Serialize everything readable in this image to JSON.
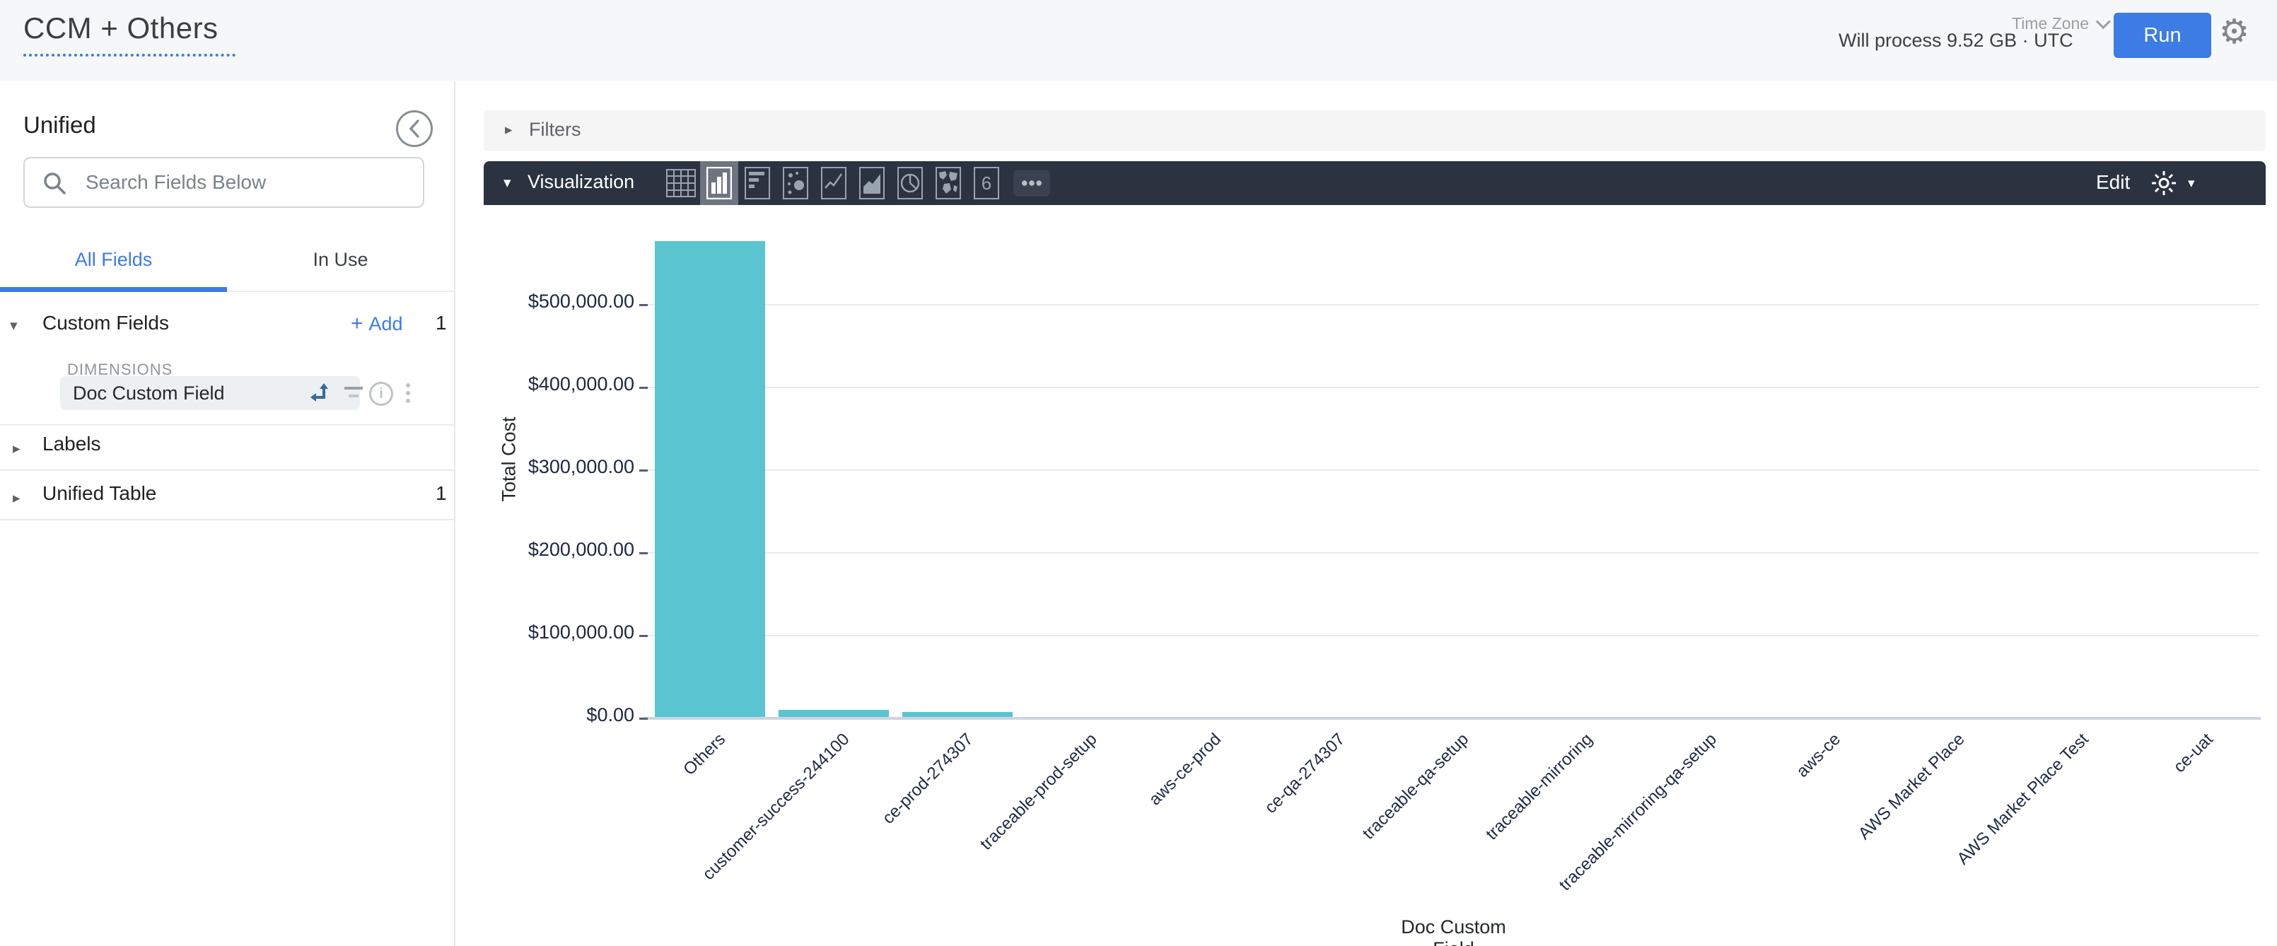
{
  "header": {
    "title": "CCM + Others",
    "process_info": "Will process 9.52 GB · UTC",
    "time_zone_label": "Time Zone",
    "run_label": "Run"
  },
  "sidebar": {
    "view_name": "Unified",
    "search_placeholder": "Search Fields Below",
    "tabs": {
      "all_fields": "All Fields",
      "in_use": "In Use"
    },
    "custom_fields": {
      "label": "Custom Fields",
      "add_label": "Add",
      "count": "1",
      "group_label": "DIMENSIONS",
      "field_name": "Doc Custom Field"
    },
    "labels_section": {
      "label": "Labels"
    },
    "unified_table_section": {
      "label": "Unified Table",
      "count": "1"
    }
  },
  "filters": {
    "label": "Filters"
  },
  "viz": {
    "label": "Visualization",
    "edit_label": "Edit",
    "selected_chart_type": "column",
    "chart_types": [
      "table",
      "column",
      "bar",
      "scatter",
      "line",
      "area",
      "pie",
      "map",
      "single-value",
      "more"
    ],
    "single_value_glyph": "6"
  },
  "chart_data": {
    "type": "bar",
    "title": "",
    "xlabel": "Doc Custom Field",
    "ylabel": "Total Cost",
    "categories": [
      "Others",
      "customer-success-244100",
      "ce-prod-274307",
      "traceable-prod-setup",
      "aws-ce-prod",
      "ce-qa-274307",
      "traceable-qa-setup",
      "traceable-mirroring",
      "traceable-mirroring-qa-setup",
      "aws-ce",
      "AWS Market Place",
      "AWS Market Place Test",
      "ce-uat"
    ],
    "values": [
      575000,
      8500,
      6400,
      0,
      0,
      0,
      0,
      0,
      0,
      0,
      0,
      0,
      0
    ],
    "y_ticks": {
      "values": [
        0,
        100000,
        200000,
        300000,
        400000,
        500000
      ],
      "labels": [
        "$0.00",
        "$100,000.00",
        "$200,000.00",
        "$300,000.00",
        "$400,000.00",
        "$500,000.00"
      ]
    },
    "ylim": [
      0,
      580000
    ],
    "grid": true,
    "legend": false,
    "bar_color": "#5BC4D1"
  },
  "colors": {
    "accent_blue": "#3D7BE5",
    "toolbar_dark": "#2B3240",
    "bar_teal": "#5BC4D1",
    "header_bg": "#F6F7F8"
  }
}
